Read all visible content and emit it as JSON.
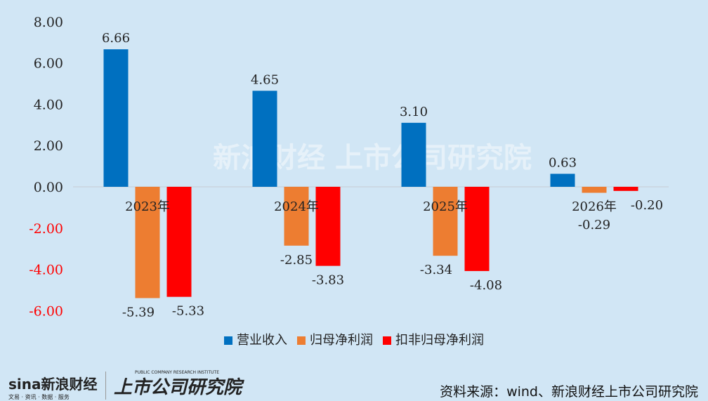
{
  "chart_data": {
    "type": "bar",
    "categories": [
      "2023年",
      "2024年",
      "2025年",
      "2026年"
    ],
    "series": [
      {
        "name": "营业收入",
        "color": "#0070c0",
        "values": [
          6.66,
          4.65,
          3.1,
          0.63
        ]
      },
      {
        "name": "归母净利润",
        "color": "#ed7d31",
        "values": [
          -5.39,
          -2.85,
          -3.34,
          -0.29
        ]
      },
      {
        "name": "扣非归母净利润",
        "color": "#ff0000",
        "values": [
          -5.33,
          -3.83,
          -4.08,
          -0.2
        ]
      }
    ],
    "ylim": [
      -6,
      8
    ],
    "yticks": [
      "8.00",
      "6.00",
      "4.00",
      "2.00",
      "0.00",
      "-2.00",
      "-4.00",
      "-6.00"
    ],
    "negative_tick_color": "#ff0000",
    "legend_position": "bottom",
    "grid": false
  },
  "watermark": "新浪财经 上市公司研究院",
  "footer": {
    "logo_sina": "sina新浪财经",
    "logo_sina_sub": "文易 · 资讯 · 数据 · 服务",
    "logo_institute": "上市公司研究院",
    "logo_institute_sub": "PUBLIC COMPANY RESEARCH INSTITUTE",
    "source": "资料来源：wind、新浪财经上市公司研究院"
  }
}
